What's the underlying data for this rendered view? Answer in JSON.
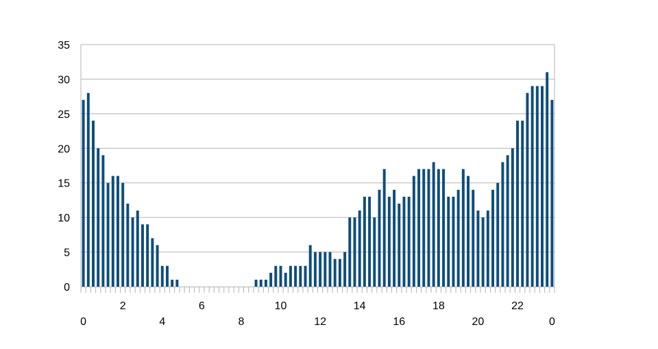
{
  "chart_data": {
    "type": "bar",
    "title": "",
    "xlabel": "",
    "ylabel": "",
    "ylim": [
      0,
      35
    ],
    "yticks": [
      0,
      5,
      10,
      15,
      20,
      25,
      30,
      35
    ],
    "xtick_labels": [
      {
        "label": "0",
        "position": 0
      },
      {
        "label": "2",
        "position": 8
      },
      {
        "label": "4",
        "position": 16
      },
      {
        "label": "6",
        "position": 24
      },
      {
        "label": "8",
        "position": 32
      },
      {
        "label": "10",
        "position": 40
      },
      {
        "label": "12",
        "position": 48
      },
      {
        "label": "14",
        "position": 56
      },
      {
        "label": "16",
        "position": 64
      },
      {
        "label": "18",
        "position": 72
      },
      {
        "label": "20",
        "position": 80
      },
      {
        "label": "22",
        "position": 88
      },
      {
        "label": "0",
        "position": 96
      }
    ],
    "values": [
      27,
      28,
      24,
      20,
      19,
      15,
      16,
      16,
      15,
      12,
      10,
      11,
      9,
      9,
      7,
      6,
      3,
      3,
      1,
      1,
      0,
      0,
      0,
      0,
      0,
      0,
      0,
      0,
      0,
      0,
      0,
      0,
      0,
      0,
      0,
      1,
      1,
      1,
      2,
      3,
      3,
      2,
      3,
      3,
      3,
      3,
      6,
      5,
      5,
      5,
      5,
      4,
      4,
      5,
      10,
      10,
      11,
      13,
      13,
      10,
      14,
      17,
      13,
      14,
      12,
      13,
      13,
      16,
      17,
      17,
      17,
      18,
      17,
      17,
      13,
      13,
      14,
      17,
      16,
      14,
      11,
      10,
      11,
      14,
      15,
      18,
      19,
      20,
      24,
      24,
      28,
      29,
      29,
      29,
      31,
      27
    ],
    "grid": true,
    "legend": "none",
    "bar_color": "#0E4D7D",
    "grid_color": "#B3B3B3"
  }
}
